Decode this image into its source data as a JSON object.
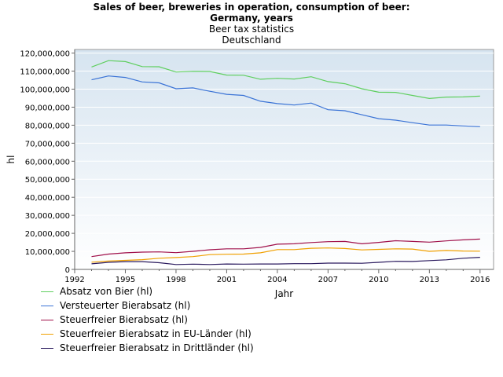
{
  "chart_data": {
    "type": "line",
    "title_line1": "Sales of beer, breweries in operation, consumption of beer:",
    "title_line2": "Germany, years",
    "subtitle_line1": "Beer tax statistics",
    "subtitle_line2": "Deutschland",
    "xlabel": "Jahr",
    "ylabel": "hl",
    "xlim": [
      1992,
      2016.8
    ],
    "ylim": [
      0,
      122000000
    ],
    "xticks": [
      1992,
      1995,
      1998,
      2001,
      2004,
      2007,
      2010,
      2013,
      2016
    ],
    "yticks": [
      0,
      10000000,
      20000000,
      30000000,
      40000000,
      50000000,
      60000000,
      70000000,
      80000000,
      90000000,
      100000000,
      110000000,
      120000000
    ],
    "ytick_labels": [
      "0",
      "10,000,000",
      "20,000,000",
      "30,000,000",
      "40,000,000",
      "50,000,000",
      "60,000,000",
      "70,000,000",
      "80,000,000",
      "90,000,000",
      "100,000,000",
      "110,000,000",
      "120,000,000"
    ],
    "x": [
      1993,
      1994,
      1995,
      1996,
      1997,
      1998,
      1999,
      2000,
      2001,
      2002,
      2003,
      2004,
      2005,
      2006,
      2007,
      2008,
      2009,
      2010,
      2011,
      2012,
      2013,
      2014,
      2015,
      2016
    ],
    "series": [
      {
        "name": "Absatz von Bier (hl)",
        "color": "#5fcf5f",
        "values": [
          112300000,
          115800000,
          115300000,
          112500000,
          112400000,
          109500000,
          109900000,
          109800000,
          107800000,
          107700000,
          105500000,
          106000000,
          105600000,
          106900000,
          104200000,
          103000000,
          100200000,
          98300000,
          98200000,
          96500000,
          94800000,
          95600000,
          95700000,
          96100000
        ]
      },
      {
        "name": "Versteuerter Bierabsatz (hl)",
        "color": "#3a73d6",
        "values": [
          105200000,
          107300000,
          106500000,
          104000000,
          103500000,
          100200000,
          100700000,
          98800000,
          97100000,
          96500000,
          93300000,
          92000000,
          91200000,
          92300000,
          88600000,
          88000000,
          85800000,
          83600000,
          82800000,
          81400000,
          80100000,
          80100000,
          79600000,
          79200000
        ]
      },
      {
        "name": "Steuerfreier Bierabsatz (hl)",
        "color": "#a0104a",
        "values": [
          7100000,
          8500000,
          9200000,
          9600000,
          9700000,
          9300000,
          10000000,
          10900000,
          11400000,
          11400000,
          12200000,
          14000000,
          14200000,
          14900000,
          15400000,
          15500000,
          14200000,
          15000000,
          15900000,
          15500000,
          15100000,
          15800000,
          16400000,
          16800000
        ]
      },
      {
        "name": "Steuerfreier Bierabsatz in EU-Länder (hl)",
        "color": "#f0a000",
        "values": [
          4000000,
          4600000,
          5000000,
          5400000,
          6200000,
          6600000,
          7100000,
          8200000,
          8400000,
          8500000,
          9200000,
          11000000,
          11000000,
          11700000,
          11900000,
          11600000,
          10800000,
          11100000,
          11400000,
          11300000,
          10000000,
          10500000,
          10200000,
          10100000
        ]
      },
      {
        "name": "Steuerfreier Bierabsatz in Drittländer (hl)",
        "color": "#2a1a5e",
        "values": [
          3100000,
          3900000,
          4300000,
          4300000,
          3700000,
          2700000,
          2900000,
          2700000,
          3000000,
          2900000,
          3000000,
          3000000,
          3200000,
          3200000,
          3500000,
          3500000,
          3400000,
          3900000,
          4500000,
          4400000,
          4900000,
          5300000,
          6200000,
          6700000
        ]
      }
    ],
    "legend_position": "bottom-left"
  }
}
